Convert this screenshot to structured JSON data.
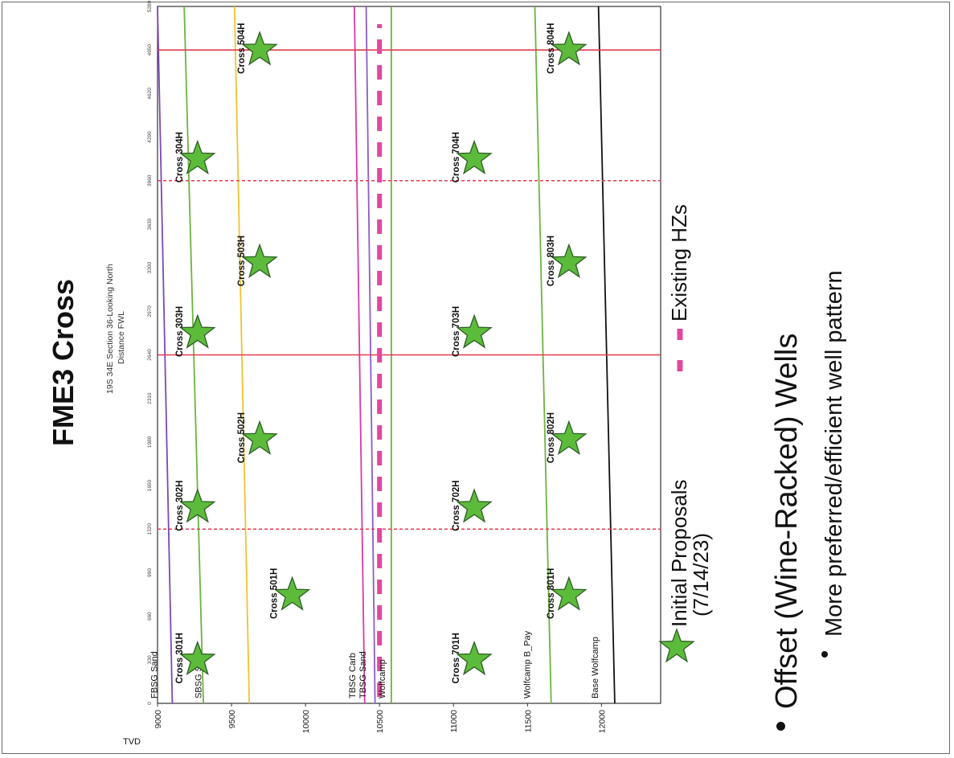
{
  "title": "FME3 Cross",
  "subtitle": [
    "19S 34E Section 36-Looking North",
    "Distance FWL"
  ],
  "chart_data": {
    "type": "scatter",
    "ylabel": "TVD",
    "ylim": [
      9000,
      12400
    ],
    "xlim": [
      0,
      5280
    ],
    "x_ticks": [
      "0",
      "330",
      "660",
      "990",
      "1320",
      "1650",
      "1980",
      "2310",
      "2640",
      "2970",
      "3300",
      "3630",
      "3960",
      "4290",
      "4620",
      "4950",
      "5280"
    ],
    "tvd_ticks": [
      9000,
      9500,
      10000,
      10500,
      11000,
      11500,
      12000
    ],
    "formations": [
      {
        "name": "FBSG Sand",
        "color": "#7b48b4",
        "tvd": [
          9100,
          9000
        ]
      },
      {
        "name": "SBSG Sand",
        "color": "#6db33f",
        "tvd": [
          9310,
          9180
        ]
      },
      {
        "name": "SBSG Sand (top)",
        "color": "#f2c230",
        "tvd": [
          9620,
          9520
        ]
      },
      {
        "name": "TBSG Carb",
        "color": "#d63aa8",
        "tvd": [
          10400,
          10330
        ]
      },
      {
        "name": "TBSG Sand",
        "color": "#8e5cc6",
        "tvd": [
          10470,
          10410
        ]
      },
      {
        "name": "Wolfcamp",
        "color": "#6db33f",
        "tvd": [
          10580,
          10580
        ]
      },
      {
        "name": "Wolfcamp B_Pay",
        "color": "#6db33f",
        "tvd": [
          11660,
          11550
        ]
      },
      {
        "name": "Base Wolfcamp",
        "color": "#111111",
        "tvd": [
          12090,
          11980
        ]
      }
    ],
    "formation_labels": [
      "FBSG Sand",
      "SBSG Sand",
      "TBSG Carb",
      "TBSG Sand",
      "Wolfcamp",
      "Wolfcamp B_Pay",
      "Base Wolfcamp"
    ],
    "unit_lines_solid_x": [
      2640,
      4950
    ],
    "unit_lines_dashed_x": [
      1320,
      3960
    ],
    "existing_hz": {
      "name": "Existing HZs",
      "tvd": 10500,
      "color": "#e0489f"
    },
    "wells": [
      {
        "name": "Cross 301H",
        "x": 330,
        "tvd": 9140
      },
      {
        "name": "Cross 501H",
        "x": 820,
        "tvd": 9780
      },
      {
        "name": "Cross 302H",
        "x": 1485,
        "tvd": 9140
      },
      {
        "name": "Cross 502H",
        "x": 2000,
        "tvd": 9560
      },
      {
        "name": "Cross 303H",
        "x": 2805,
        "tvd": 9140
      },
      {
        "name": "Cross 503H",
        "x": 3340,
        "tvd": 9560
      },
      {
        "name": "Cross 304H",
        "x": 4125,
        "tvd": 9140
      },
      {
        "name": "Cross 504H",
        "x": 4950,
        "tvd": 9560
      },
      {
        "name": "Cross 701H",
        "x": 330,
        "tvd": 11010
      },
      {
        "name": "Cross 702H",
        "x": 1485,
        "tvd": 11010
      },
      {
        "name": "Cross 703H",
        "x": 2805,
        "tvd": 11010
      },
      {
        "name": "Cross 704H",
        "x": 4125,
        "tvd": 11010
      },
      {
        "name": "Cross 801H",
        "x": 820,
        "tvd": 11650
      },
      {
        "name": "Cross 802H",
        "x": 2000,
        "tvd": 11650
      },
      {
        "name": "Cross 803H",
        "x": 3340,
        "tvd": 11650
      },
      {
        "name": "Cross 804H",
        "x": 4950,
        "tvd": 11650
      }
    ]
  },
  "legend": {
    "initial_proposals": [
      "Initial Proposals",
      "(7/14/23)"
    ],
    "existing_hzs": "Existing HZs",
    "star_color": "#5dbb3c"
  },
  "bullets": {
    "main": "Offset (Wine-Racked) Wells",
    "sub": "More preferred/efficient well pattern"
  }
}
